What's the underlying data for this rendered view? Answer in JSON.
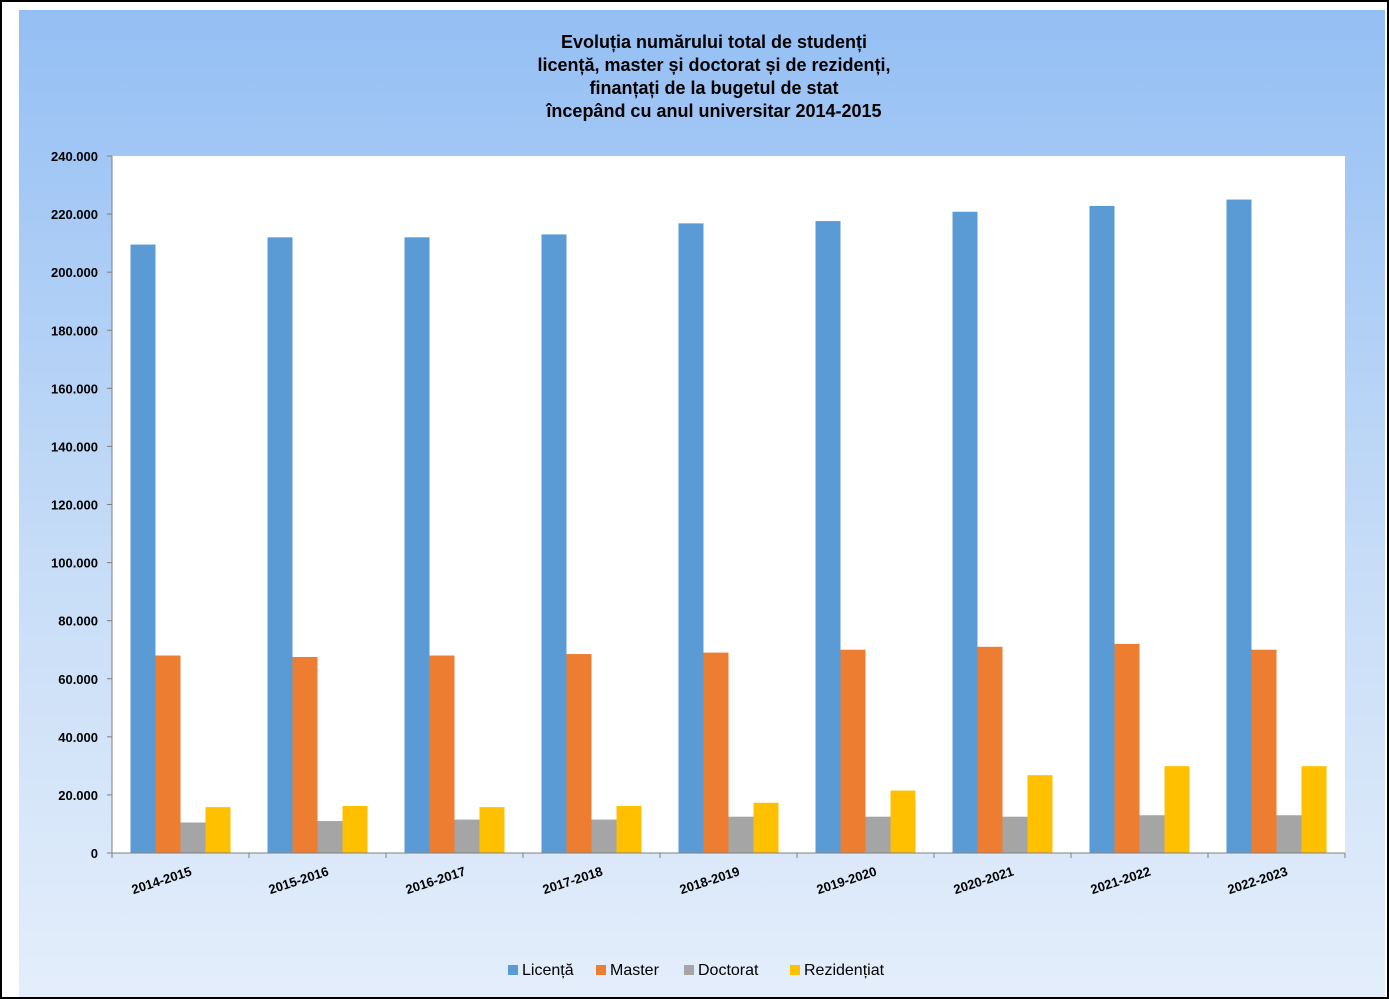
{
  "chart_data": {
    "type": "bar",
    "title_lines": [
      "Evoluția numărului total de studenți",
      "licență, master și doctorat și de rezidenți,",
      "finanțați de la bugetul de stat",
      "începând cu anul universitar 2014-2015"
    ],
    "categories": [
      "2014-2015",
      "2015-2016",
      "2016-2017",
      "2017-2018",
      "2018-2019",
      "2019-2020",
      "2020-2021",
      "2021-2022",
      "2022-2023"
    ],
    "series": [
      {
        "name": "Licență",
        "color": "#5b9bd5",
        "values": [
          209500,
          212000,
          212000,
          213000,
          216800,
          217600,
          220800,
          222800,
          225000
        ]
      },
      {
        "name": "Master",
        "color": "#ed7d31",
        "values": [
          68000,
          67500,
          68000,
          68500,
          69000,
          70000,
          71000,
          72000,
          70000
        ]
      },
      {
        "name": "Doctorat",
        "color": "#a5a5a5",
        "values": [
          10500,
          11000,
          11500,
          11500,
          12500,
          12500,
          12500,
          13000,
          13000
        ]
      },
      {
        "name": "Rezidențiat",
        "color": "#ffc000",
        "values": [
          15800,
          16200,
          15800,
          16200,
          17300,
          21500,
          26800,
          29900,
          29900
        ]
      }
    ],
    "ylim": [
      0,
      240000
    ],
    "yticks": [
      {
        "value": 0,
        "label": "0"
      },
      {
        "value": 20000,
        "label": "20.000"
      },
      {
        "value": 40000,
        "label": "40.000"
      },
      {
        "value": 60000,
        "label": "60.000"
      },
      {
        "value": 80000,
        "label": "80.000"
      },
      {
        "value": 100000,
        "label": "100.000"
      },
      {
        "value": 120000,
        "label": "120.000"
      },
      {
        "value": 140000,
        "label": "140.000"
      },
      {
        "value": 160000,
        "label": "160.000"
      },
      {
        "value": 180000,
        "label": "180.000"
      },
      {
        "value": 200000,
        "label": "200.000"
      },
      {
        "value": 220000,
        "label": "220.000"
      },
      {
        "value": 240000,
        "label": "240.000"
      }
    ],
    "grid": false,
    "legend_position": "bottom"
  }
}
